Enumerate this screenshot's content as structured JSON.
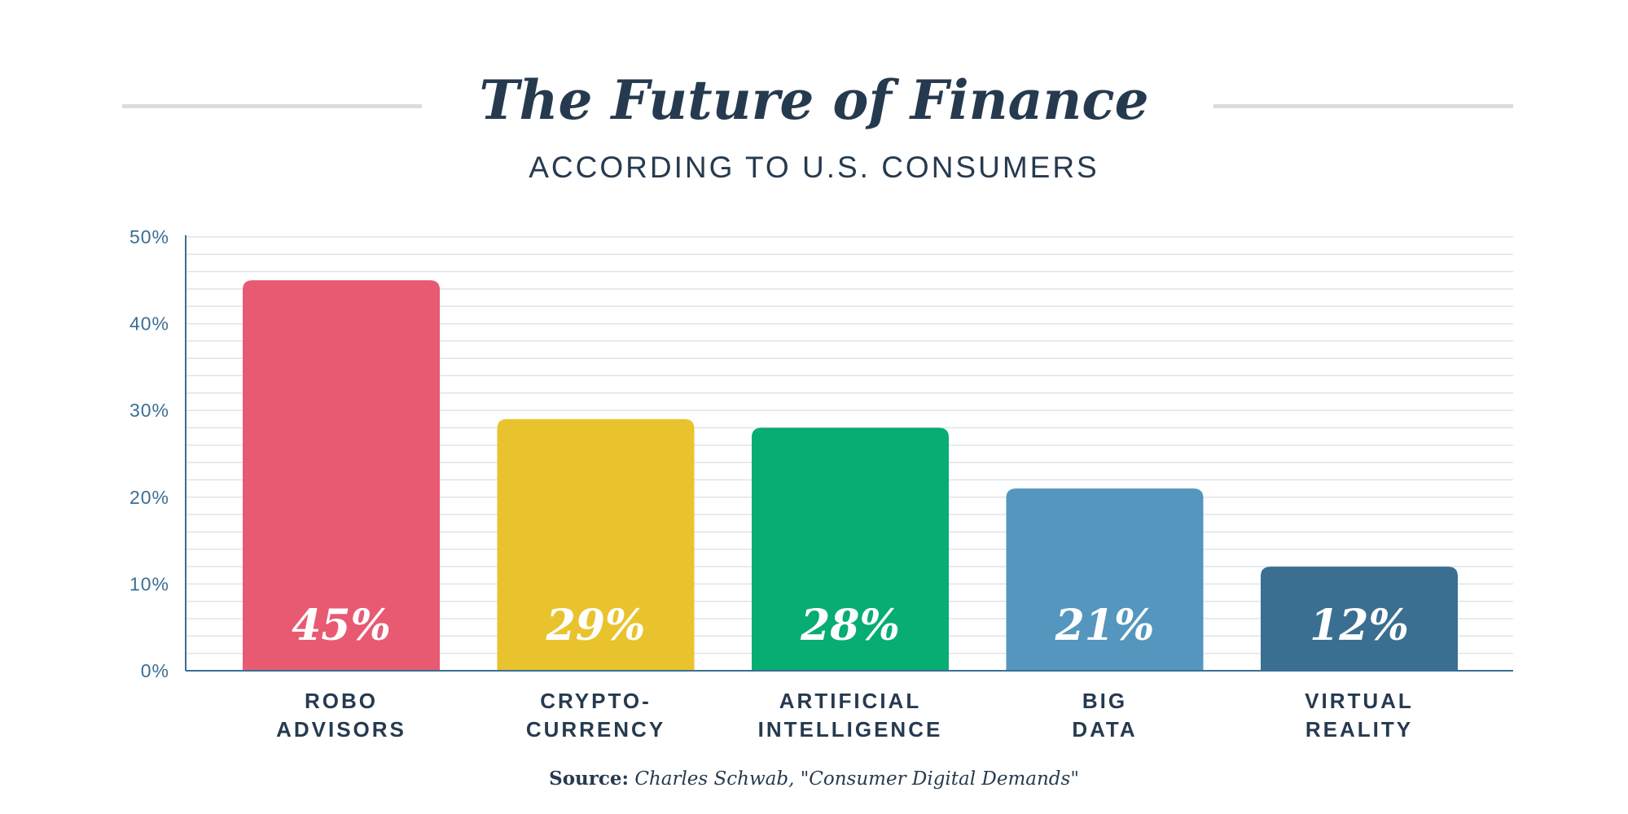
{
  "title": "The Future of Finance",
  "subtitle": "ACCORDING TO U.S. CONSUMERS",
  "source": {
    "label": "Source:",
    "text": "Charles Schwab, \"Consumer Digital Demands\""
  },
  "colors": {
    "text": "#263a4f",
    "axis": "#3b6f94",
    "grid": "#dfe4ea",
    "rule": "#dcdcdc"
  },
  "chart_data": {
    "type": "bar",
    "categories": [
      [
        "ROBO",
        "ADVISORS"
      ],
      [
        "CRYPTO-",
        "CURRENCY"
      ],
      [
        "ARTIFICIAL",
        "INTELLIGENCE"
      ],
      [
        "BIG",
        "DATA"
      ],
      [
        "VIRTUAL",
        "REALITY"
      ]
    ],
    "values": [
      45,
      29,
      28,
      21,
      12
    ],
    "value_labels": [
      "45%",
      "29%",
      "28%",
      "21%",
      "12%"
    ],
    "bar_colors": [
      "#e85a72",
      "#e9c32e",
      "#07ad72",
      "#5496be",
      "#3a6f91"
    ],
    "yticks": [
      0,
      10,
      20,
      30,
      40,
      50
    ],
    "ytick_labels": [
      "0%",
      "10%",
      "20%",
      "30%",
      "40%",
      "50%"
    ],
    "ylim": [
      0,
      50
    ],
    "grid": true
  }
}
